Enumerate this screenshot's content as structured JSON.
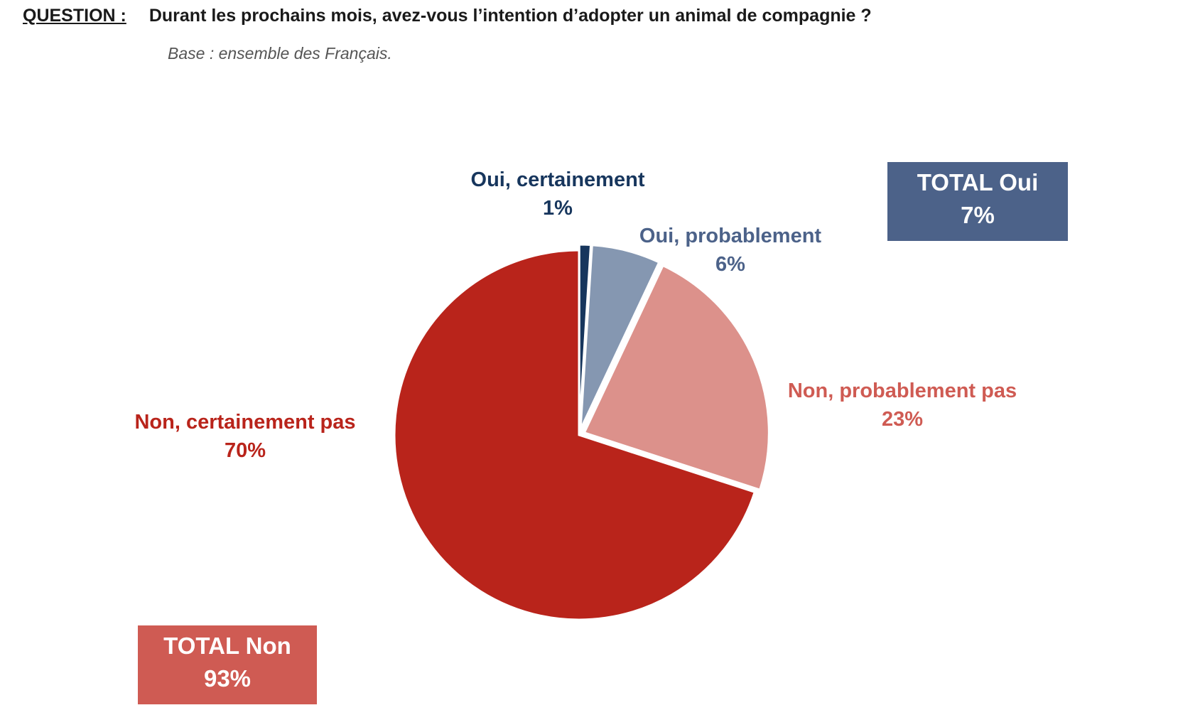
{
  "header": {
    "question_label": "QUESTION :",
    "question_text": "Durant les prochains mois, avez-vous l’intention d’adopter un animal de compagnie ?",
    "base": "Base : ensemble des Français."
  },
  "chart_data": {
    "type": "pie",
    "title": "",
    "slices": [
      {
        "label": "Oui, certainement",
        "value": 1,
        "value_label": "1%",
        "color": "#17365d",
        "label_color": "#17365d"
      },
      {
        "label": "Oui, probablement",
        "value": 6,
        "value_label": "6%",
        "color": "#8597b1",
        "label_color": "#4c6289"
      },
      {
        "label": "Non, probablement pas",
        "value": 23,
        "value_label": "23%",
        "color": "#dc918b",
        "label_color": "#cf5b53"
      },
      {
        "label": "Non, certainement pas",
        "value": 70,
        "value_label": "70%",
        "color": "#b9241b",
        "label_color": "#b9241b"
      }
    ],
    "totals": [
      {
        "label": "TOTAL Oui",
        "value": 7,
        "value_label": "7%",
        "color": "#4c6289"
      },
      {
        "label": "TOTAL Non",
        "value": 93,
        "value_label": "93%",
        "color": "#cf5b53"
      }
    ]
  }
}
